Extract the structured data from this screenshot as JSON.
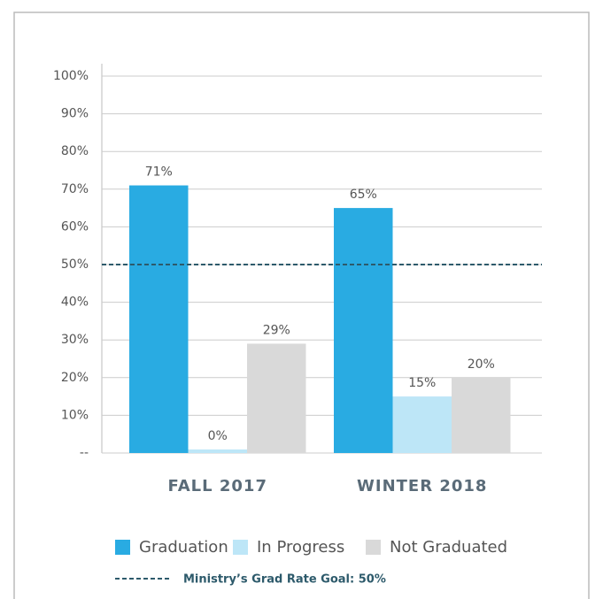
{
  "chart_data": {
    "type": "bar",
    "categories": [
      "FALL 2017",
      "WINTER 2018"
    ],
    "series": [
      {
        "name": "Graduation",
        "color": "#29abe2",
        "values": [
          71,
          65
        ],
        "value_labels": [
          "71%",
          "65%"
        ]
      },
      {
        "name": "In Progress",
        "color": "#bde6f7",
        "values": [
          0,
          15
        ],
        "value_labels": [
          "0%",
          "15%"
        ]
      },
      {
        "name": "Not Graduated",
        "color": "#d9d9d9",
        "values": [
          29,
          20
        ],
        "value_labels": [
          "29%",
          "20%"
        ]
      }
    ],
    "ylim": [
      0,
      100
    ],
    "yticks": [
      {
        "value": 0,
        "label": "--"
      },
      {
        "value": 10,
        "label": "10%"
      },
      {
        "value": 20,
        "label": "20%"
      },
      {
        "value": 30,
        "label": "30%"
      },
      {
        "value": 40,
        "label": "40%"
      },
      {
        "value": 50,
        "label": "50%"
      },
      {
        "value": 60,
        "label": "60%"
      },
      {
        "value": 70,
        "label": "70%"
      },
      {
        "value": 80,
        "label": "80%"
      },
      {
        "value": 90,
        "label": "90%"
      },
      {
        "value": 100,
        "label": "100%"
      }
    ],
    "grid": true,
    "reference_line": {
      "value": 50,
      "label": "Ministry’s Grad Rate Goal: 50%",
      "color": "#2d5a6b"
    }
  }
}
